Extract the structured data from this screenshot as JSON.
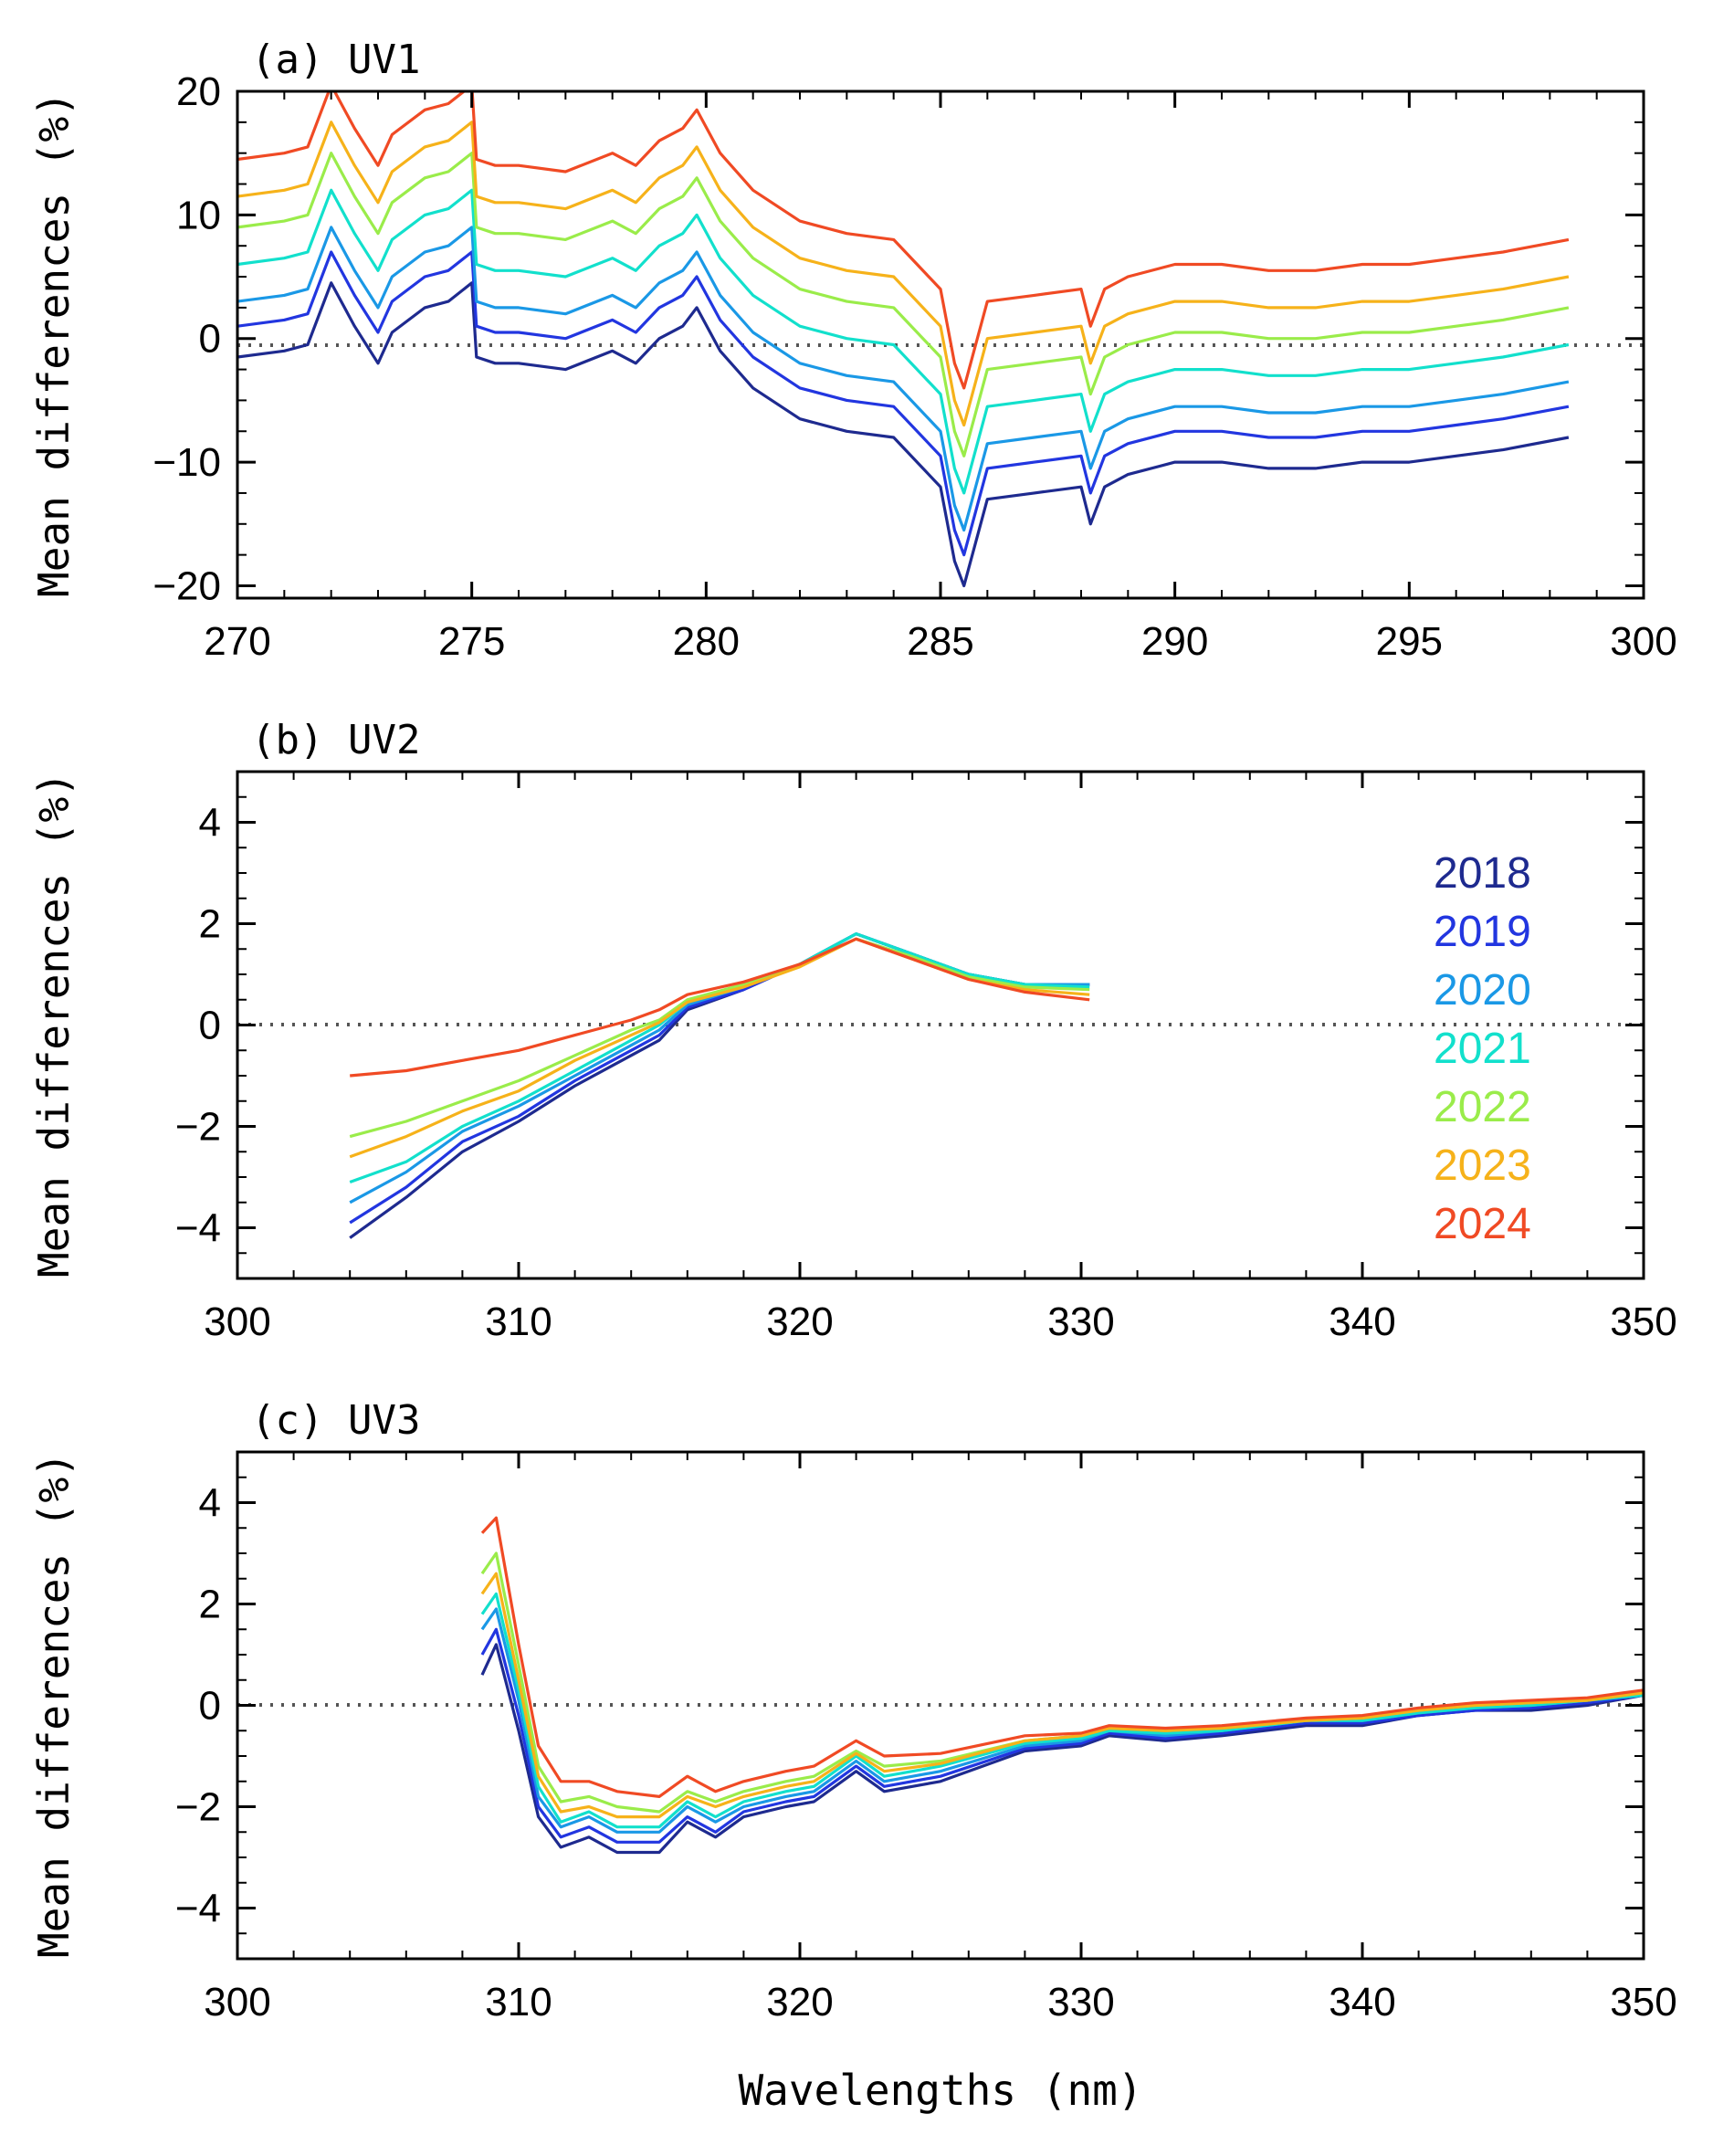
{
  "figure": {
    "xlabel": "Wavelengths (nm)",
    "ylabel": "Mean differences (%)"
  },
  "legend": [
    {
      "year": "2018",
      "color": "#1e2a8f"
    },
    {
      "year": "2019",
      "color": "#2236e0"
    },
    {
      "year": "2020",
      "color": "#1a98e6"
    },
    {
      "year": "2021",
      "color": "#12e0cc"
    },
    {
      "year": "2022",
      "color": "#9aec4a"
    },
    {
      "year": "2023",
      "color": "#f6b21a"
    },
    {
      "year": "2024",
      "color": "#f04a24"
    }
  ],
  "chart_data": [
    {
      "type": "line",
      "title": "(a) UV1",
      "xlabel": "",
      "ylabel": "Mean differences (%)",
      "xlim": [
        270,
        300
      ],
      "ylim": [
        -21,
        20
      ],
      "xticks": [
        270,
        275,
        280,
        285,
        290,
        295,
        300
      ],
      "yticks": [
        -20,
        -10,
        0,
        10,
        20
      ],
      "ytick_labels": [
        "−20",
        "−10",
        "0",
        "10",
        "20"
      ],
      "reference_line": 0,
      "base": {
        "x": [
          270,
          271,
          271.5,
          272,
          272.5,
          273,
          273.3,
          274,
          274.5,
          275,
          275.1,
          275.5,
          276,
          277,
          278,
          278.5,
          279,
          279.5,
          279.8,
          280.3,
          281,
          282,
          283,
          284,
          285,
          285.3,
          285.5,
          286,
          287,
          288,
          288.2,
          288.5,
          289,
          290,
          291,
          292,
          293,
          294,
          295,
          296,
          297,
          298.4
        ],
        "y": [
          -1.5,
          -1,
          -0.5,
          4.5,
          1,
          -2,
          0.5,
          2.5,
          3,
          4.5,
          -1.5,
          -2,
          -2,
          -2.5,
          -1,
          -2,
          0,
          1,
          2.5,
          -1,
          -4,
          -6.5,
          -7.5,
          -8,
          -12,
          -18,
          -20,
          -13,
          -12.5,
          -12,
          -15,
          -12,
          -11,
          -10,
          -10,
          -10.5,
          -10.5,
          -10,
          -10,
          -9.5,
          -9,
          -8
        ]
      },
      "series": [
        {
          "name": "2018",
          "offset": 0
        },
        {
          "name": "2019",
          "offset": 2.5
        },
        {
          "name": "2020",
          "offset": 4.5
        },
        {
          "name": "2021",
          "offset": 7.5
        },
        {
          "name": "2022",
          "offset": 10.5
        },
        {
          "name": "2023",
          "offset": 13
        },
        {
          "name": "2024",
          "offset": 16
        }
      ]
    },
    {
      "type": "line",
      "title": "(b) UV2",
      "xlabel": "",
      "ylabel": "Mean differences (%)",
      "xlim": [
        300,
        350
      ],
      "ylim": [
        -5,
        5
      ],
      "xticks": [
        300,
        310,
        320,
        330,
        340,
        350
      ],
      "yticks": [
        -4,
        -2,
        0,
        2,
        4
      ],
      "ytick_labels": [
        "−4",
        "−2",
        "0",
        "2",
        "4"
      ],
      "reference_line": 0,
      "series": [
        {
          "name": "2018",
          "x": [
            304,
            306,
            308,
            310,
            312,
            314,
            315,
            316,
            318,
            320,
            322,
            324,
            326,
            328,
            330.3
          ],
          "y": [
            -4.2,
            -3.4,
            -2.5,
            -1.9,
            -1.2,
            -0.6,
            -0.3,
            0.3,
            0.7,
            1.2,
            1.8,
            1.4,
            1.0,
            0.8,
            0.8
          ]
        },
        {
          "name": "2019",
          "x": [
            304,
            306,
            308,
            310,
            312,
            314,
            315,
            316,
            318,
            320,
            322,
            324,
            326,
            328,
            330.3
          ],
          "y": [
            -3.9,
            -3.2,
            -2.3,
            -1.8,
            -1.1,
            -0.5,
            -0.2,
            0.35,
            0.7,
            1.2,
            1.8,
            1.4,
            1.0,
            0.8,
            0.8
          ]
        },
        {
          "name": "2020",
          "x": [
            304,
            306,
            308,
            310,
            312,
            314,
            315,
            316,
            318,
            320,
            322,
            324,
            326,
            328,
            330.3
          ],
          "y": [
            -3.5,
            -2.9,
            -2.1,
            -1.6,
            -1.0,
            -0.4,
            -0.1,
            0.4,
            0.75,
            1.2,
            1.8,
            1.4,
            1.0,
            0.8,
            0.8
          ]
        },
        {
          "name": "2021",
          "x": [
            304,
            306,
            308,
            310,
            312,
            314,
            315,
            316,
            318,
            320,
            322,
            324,
            326,
            328,
            330.3
          ],
          "y": [
            -3.1,
            -2.7,
            -2.0,
            -1.5,
            -0.9,
            -0.3,
            0.0,
            0.45,
            0.8,
            1.2,
            1.8,
            1.4,
            1.0,
            0.8,
            0.75
          ]
        },
        {
          "name": "2022",
          "x": [
            304,
            306,
            308,
            310,
            312,
            314,
            315,
            316,
            318,
            320,
            322,
            324,
            326,
            328,
            330.3
          ],
          "y": [
            -2.2,
            -1.9,
            -1.5,
            -1.1,
            -0.6,
            -0.1,
            0.1,
            0.5,
            0.8,
            1.2,
            1.7,
            1.35,
            0.95,
            0.75,
            0.7
          ]
        },
        {
          "name": "2023",
          "x": [
            304,
            306,
            308,
            310,
            312,
            314,
            315,
            316,
            318,
            320,
            322,
            324,
            326,
            328,
            330.3
          ],
          "y": [
            -2.6,
            -2.2,
            -1.7,
            -1.3,
            -0.7,
            -0.2,
            0.05,
            0.45,
            0.75,
            1.15,
            1.7,
            1.3,
            0.9,
            0.7,
            0.6
          ]
        },
        {
          "name": "2024",
          "x": [
            304,
            306,
            308,
            310,
            312,
            314,
            315,
            316,
            318,
            320,
            322,
            324,
            326,
            328,
            330.3
          ],
          "y": [
            -1.0,
            -0.9,
            -0.7,
            -0.5,
            -0.2,
            0.1,
            0.3,
            0.6,
            0.85,
            1.2,
            1.7,
            1.3,
            0.9,
            0.65,
            0.5
          ]
        }
      ]
    },
    {
      "type": "line",
      "title": "(c) UV3",
      "xlabel": "Wavelengths (nm)",
      "ylabel": "Mean differences (%)",
      "xlim": [
        300,
        350
      ],
      "ylim": [
        -5,
        5
      ],
      "xticks": [
        300,
        310,
        320,
        330,
        340,
        350
      ],
      "yticks": [
        -4,
        -2,
        0,
        2,
        4
      ],
      "ytick_labels": [
        "−4",
        "−2",
        "0",
        "2",
        "4"
      ],
      "reference_line": 0,
      "series": [
        {
          "name": "2018",
          "x": [
            308.7,
            309.2,
            310,
            310.7,
            311.5,
            312.5,
            313.5,
            315,
            316,
            317,
            318,
            319.5,
            320.5,
            322,
            323,
            325,
            328,
            330,
            331,
            333,
            335,
            338,
            340,
            342,
            344,
            346,
            348,
            350
          ],
          "y": [
            0.6,
            1.2,
            -0.5,
            -2.2,
            -2.8,
            -2.6,
            -2.9,
            -2.9,
            -2.3,
            -2.6,
            -2.2,
            -2.0,
            -1.9,
            -1.3,
            -1.7,
            -1.5,
            -0.9,
            -0.8,
            -0.6,
            -0.7,
            -0.6,
            -0.4,
            -0.4,
            -0.2,
            -0.1,
            -0.1,
            0.0,
            0.2
          ]
        },
        {
          "name": "2019",
          "x": [
            308.7,
            309.2,
            310,
            310.7,
            311.5,
            312.5,
            313.5,
            315,
            316,
            317,
            318,
            319.5,
            320.5,
            322,
            323,
            325,
            328,
            330,
            331,
            333,
            335,
            338,
            340,
            342,
            344,
            346,
            348,
            350
          ],
          "y": [
            1.0,
            1.5,
            -0.2,
            -2.0,
            -2.6,
            -2.4,
            -2.7,
            -2.7,
            -2.2,
            -2.5,
            -2.1,
            -1.9,
            -1.8,
            -1.2,
            -1.6,
            -1.4,
            -0.85,
            -0.75,
            -0.55,
            -0.65,
            -0.55,
            -0.35,
            -0.35,
            -0.2,
            -0.1,
            -0.05,
            0.05,
            0.2
          ]
        },
        {
          "name": "2020",
          "x": [
            308.7,
            309.2,
            310,
            310.7,
            311.5,
            312.5,
            313.5,
            315,
            316,
            317,
            318,
            319.5,
            320.5,
            322,
            323,
            325,
            328,
            330,
            331,
            333,
            335,
            338,
            340,
            342,
            344,
            346,
            348,
            350
          ],
          "y": [
            1.5,
            1.9,
            0.1,
            -1.8,
            -2.4,
            -2.2,
            -2.5,
            -2.5,
            -2.0,
            -2.3,
            -2.0,
            -1.8,
            -1.7,
            -1.1,
            -1.5,
            -1.3,
            -0.8,
            -0.7,
            -0.5,
            -0.6,
            -0.5,
            -0.3,
            -0.3,
            -0.15,
            -0.05,
            0.0,
            0.1,
            0.2
          ]
        },
        {
          "name": "2021",
          "x": [
            308.7,
            309.2,
            310,
            310.7,
            311.5,
            312.5,
            313.5,
            315,
            316,
            317,
            318,
            319.5,
            320.5,
            322,
            323,
            325,
            328,
            330,
            331,
            333,
            335,
            338,
            340,
            342,
            344,
            346,
            348,
            350
          ],
          "y": [
            1.8,
            2.2,
            0.3,
            -1.6,
            -2.3,
            -2.1,
            -2.4,
            -2.4,
            -1.9,
            -2.2,
            -1.9,
            -1.7,
            -1.6,
            -1.0,
            -1.4,
            -1.2,
            -0.75,
            -0.65,
            -0.5,
            -0.55,
            -0.5,
            -0.3,
            -0.3,
            -0.15,
            -0.05,
            0.0,
            0.1,
            0.2
          ]
        },
        {
          "name": "2022",
          "x": [
            308.7,
            309.2,
            310,
            310.7,
            311.5,
            312.5,
            313.5,
            315,
            316,
            317,
            318,
            319.5,
            320.5,
            322,
            323,
            325,
            328,
            330,
            331,
            333,
            335,
            338,
            340,
            342,
            344,
            346,
            348,
            350
          ],
          "y": [
            2.6,
            3.0,
            0.8,
            -1.2,
            -1.9,
            -1.8,
            -2.0,
            -2.1,
            -1.7,
            -1.9,
            -1.7,
            -1.5,
            -1.4,
            -0.9,
            -1.2,
            -1.1,
            -0.7,
            -0.6,
            -0.45,
            -0.5,
            -0.45,
            -0.3,
            -0.25,
            -0.1,
            0.0,
            0.05,
            0.1,
            0.25
          ]
        },
        {
          "name": "2023",
          "x": [
            308.7,
            309.2,
            310,
            310.7,
            311.5,
            312.5,
            313.5,
            315,
            316,
            317,
            318,
            319.5,
            320.5,
            322,
            323,
            325,
            328,
            330,
            331,
            333,
            335,
            338,
            340,
            342,
            344,
            346,
            348,
            350
          ],
          "y": [
            2.2,
            2.6,
            0.5,
            -1.4,
            -2.1,
            -2.0,
            -2.2,
            -2.2,
            -1.8,
            -2.0,
            -1.8,
            -1.6,
            -1.5,
            -0.95,
            -1.3,
            -1.15,
            -0.7,
            -0.6,
            -0.45,
            -0.5,
            -0.45,
            -0.3,
            -0.25,
            -0.1,
            0.0,
            0.05,
            0.1,
            0.25
          ]
        },
        {
          "name": "2024",
          "x": [
            308.7,
            309.2,
            310,
            310.7,
            311.5,
            312.5,
            313.5,
            315,
            316,
            317,
            318,
            319.5,
            320.5,
            322,
            323,
            325,
            328,
            330,
            331,
            333,
            335,
            338,
            340,
            342,
            344,
            346,
            348,
            350
          ],
          "y": [
            3.4,
            3.7,
            1.2,
            -0.8,
            -1.5,
            -1.5,
            -1.7,
            -1.8,
            -1.4,
            -1.7,
            -1.5,
            -1.3,
            -1.2,
            -0.7,
            -1.0,
            -0.95,
            -0.6,
            -0.55,
            -0.4,
            -0.45,
            -0.4,
            -0.25,
            -0.2,
            -0.05,
            0.05,
            0.1,
            0.15,
            0.3
          ]
        }
      ]
    }
  ]
}
